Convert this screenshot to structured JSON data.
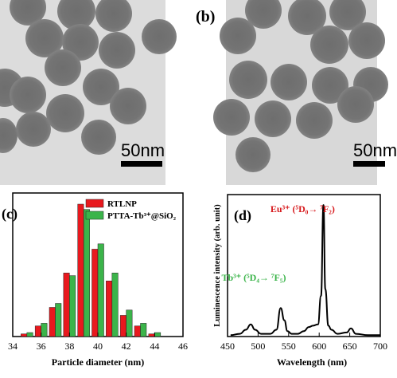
{
  "panels": {
    "a": {
      "scale_label": "50nm"
    },
    "b": {
      "letter": "(b)",
      "scale_label": "50nm"
    },
    "c": {
      "letter": "(c)"
    },
    "d": {
      "letter": "(d)"
    }
  },
  "chart_data": [
    {
      "type": "bar",
      "panel": "(c)",
      "xlabel": "Particle diameter (nm)",
      "ylabel": "",
      "xlim": [
        34,
        46
      ],
      "xticks": [
        34,
        36,
        38,
        40,
        42,
        44,
        46
      ],
      "legend": "top-right",
      "x": [
        35,
        36,
        37,
        38,
        39,
        40,
        41,
        42,
        43,
        44
      ],
      "series": [
        {
          "name": "RTLNP",
          "color": "#e8191e",
          "values": [
            2,
            8,
            22,
            48,
            100,
            66,
            42,
            16,
            8,
            2
          ]
        },
        {
          "name": "PTTA-Tb³⁺@SiO₂",
          "color": "#3bb44a",
          "values": [
            3,
            10,
            25,
            46,
            96,
            70,
            48,
            20,
            10,
            3
          ]
        }
      ]
    },
    {
      "type": "line",
      "panel": "(d)",
      "xlabel": "Wavelength (nm)",
      "ylabel": "Luminescence intensity (arb. unit)",
      "xlim": [
        450,
        700
      ],
      "xticks": [
        450,
        500,
        550,
        600,
        650,
        700
      ],
      "annotations": [
        {
          "text": "Eu³⁺ (⁵D₀→ ⁷F₂)",
          "color": "#d7191c",
          "x": 612,
          "y": 1.0
        },
        {
          "text": "Tb³⁺ (⁵D₄→ ⁷F₅)",
          "color": "#3bb44a",
          "x": 545,
          "y": 0.34
        }
      ],
      "series": [
        {
          "name": "",
          "color": "#000000",
          "x": [
            455,
            470,
            480,
            488,
            495,
            505,
            520,
            530,
            537,
            543,
            548,
            555,
            565,
            575,
            583,
            590,
            598,
            603,
            607,
            610,
            615,
            620,
            630,
            645,
            652,
            660,
            680,
            700
          ],
          "y": [
            0.01,
            0.02,
            0.05,
            0.09,
            0.05,
            0.02,
            0.02,
            0.05,
            0.21,
            0.12,
            0.04,
            0.02,
            0.02,
            0.04,
            0.07,
            0.08,
            0.09,
            0.3,
            0.97,
            0.35,
            0.08,
            0.05,
            0.02,
            0.03,
            0.06,
            0.02,
            0.01,
            0.01
          ]
        }
      ]
    }
  ]
}
